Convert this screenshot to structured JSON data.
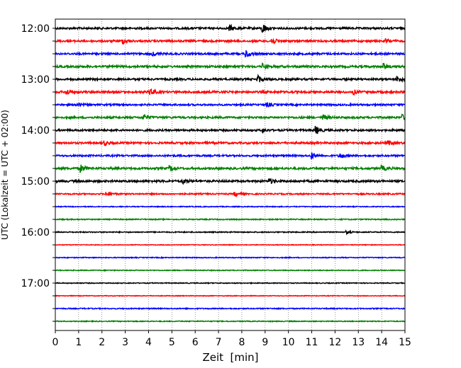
{
  "chart_data": {
    "type": "line",
    "xlabel": "Zeit  [min]",
    "ylabel": "UTC (Lokalzeit = UTC + 02:00)",
    "xlim": [
      0,
      15
    ],
    "x_ticks": [
      0,
      1,
      2,
      3,
      4,
      5,
      6,
      7,
      8,
      9,
      10,
      11,
      12,
      13,
      14,
      15
    ],
    "y_ticks": [
      "12:00",
      "13:00",
      "14:00",
      "15:00",
      "16:00",
      "17:00"
    ],
    "trace_interval_min": 15,
    "grid": "vertical dotted at each minute",
    "color_cycle": [
      "#000000",
      "#ff0000",
      "#0000ff",
      "#008000"
    ],
    "traces": [
      {
        "start": "12:00",
        "color": "#000000",
        "amplitude": 0.55,
        "events": [
          {
            "t": 7.5,
            "a": 1.6
          },
          {
            "t": 8.9,
            "a": 2.8
          }
        ]
      },
      {
        "start": "12:15",
        "color": "#ff0000",
        "amplitude": 0.55,
        "events": [
          {
            "t": 2.9,
            "a": 1.4
          },
          {
            "t": 9.3,
            "a": 2.0
          },
          {
            "t": 14.2,
            "a": 1.2
          }
        ]
      },
      {
        "start": "12:30",
        "color": "#0000ff",
        "amplitude": 0.55,
        "events": [
          {
            "t": 4.2,
            "a": 1.2
          },
          {
            "t": 8.2,
            "a": 2.2
          }
        ]
      },
      {
        "start": "12:45",
        "color": "#008000",
        "amplitude": 0.6,
        "events": [
          {
            "t": 8.9,
            "a": 1.8
          },
          {
            "t": 14.1,
            "a": 1.4
          }
        ]
      },
      {
        "start": "13:00",
        "color": "#000000",
        "amplitude": 0.55,
        "events": [
          {
            "t": 8.7,
            "a": 2.2
          },
          {
            "t": 14.7,
            "a": 1.8
          }
        ]
      },
      {
        "start": "13:15",
        "color": "#ff0000",
        "amplitude": 0.6,
        "events": [
          {
            "t": 0.5,
            "a": 1.4
          },
          {
            "t": 4.1,
            "a": 1.8
          },
          {
            "t": 12.8,
            "a": 1.2
          }
        ]
      },
      {
        "start": "13:30",
        "color": "#0000ff",
        "amplitude": 0.5,
        "events": [
          {
            "t": 0.9,
            "a": 1.2
          },
          {
            "t": 9.1,
            "a": 1.2
          }
        ]
      },
      {
        "start": "13:45",
        "color": "#008000",
        "amplitude": 0.55,
        "events": [
          {
            "t": 3.8,
            "a": 1.8
          },
          {
            "t": 11.5,
            "a": 1.6
          },
          {
            "t": 14.9,
            "a": 1.4
          }
        ]
      },
      {
        "start": "14:00",
        "color": "#000000",
        "amplitude": 0.55,
        "events": [
          {
            "t": 8.9,
            "a": 1.2
          },
          {
            "t": 11.2,
            "a": 2.0
          }
        ]
      },
      {
        "start": "14:15",
        "color": "#ff0000",
        "amplitude": 0.55,
        "events": [
          {
            "t": 2.1,
            "a": 1.4
          },
          {
            "t": 14.3,
            "a": 1.2
          }
        ]
      },
      {
        "start": "14:30",
        "color": "#0000ff",
        "amplitude": 0.5,
        "events": [
          {
            "t": 11.0,
            "a": 2.0
          },
          {
            "t": 12.2,
            "a": 1.6
          }
        ]
      },
      {
        "start": "14:45",
        "color": "#008000",
        "amplitude": 0.6,
        "events": [
          {
            "t": 1.1,
            "a": 2.0
          },
          {
            "t": 4.9,
            "a": 1.6
          },
          {
            "t": 14.0,
            "a": 1.6
          }
        ]
      },
      {
        "start": "15:00",
        "color": "#000000",
        "amplitude": 0.6,
        "events": [
          {
            "t": 5.5,
            "a": 1.2
          },
          {
            "t": 9.2,
            "a": 1.4
          }
        ]
      },
      {
        "start": "15:15",
        "color": "#ff0000",
        "amplitude": 0.4,
        "events": [
          {
            "t": 2.2,
            "a": 1.6
          },
          {
            "t": 7.7,
            "a": 1.4
          }
        ]
      },
      {
        "start": "15:30",
        "color": "#0000ff",
        "amplitude": 0.25,
        "events": []
      },
      {
        "start": "15:45",
        "color": "#008000",
        "amplitude": 0.3,
        "events": []
      },
      {
        "start": "16:00",
        "color": "#000000",
        "amplitude": 0.3,
        "events": [
          {
            "t": 12.5,
            "a": 0.8
          }
        ]
      },
      {
        "start": "16:15",
        "color": "#ff0000",
        "amplitude": 0.2,
        "events": []
      },
      {
        "start": "16:30",
        "color": "#0000ff",
        "amplitude": 0.25,
        "events": []
      },
      {
        "start": "16:45",
        "color": "#008000",
        "amplitude": 0.25,
        "events": []
      },
      {
        "start": "17:00",
        "color": "#000000",
        "amplitude": 0.25,
        "events": []
      },
      {
        "start": "17:15",
        "color": "#ff0000",
        "amplitude": 0.2,
        "events": []
      },
      {
        "start": "17:30",
        "color": "#0000ff",
        "amplitude": 0.3,
        "events": []
      },
      {
        "start": "17:45",
        "color": "#008000",
        "amplitude": 0.25,
        "events": []
      }
    ]
  }
}
